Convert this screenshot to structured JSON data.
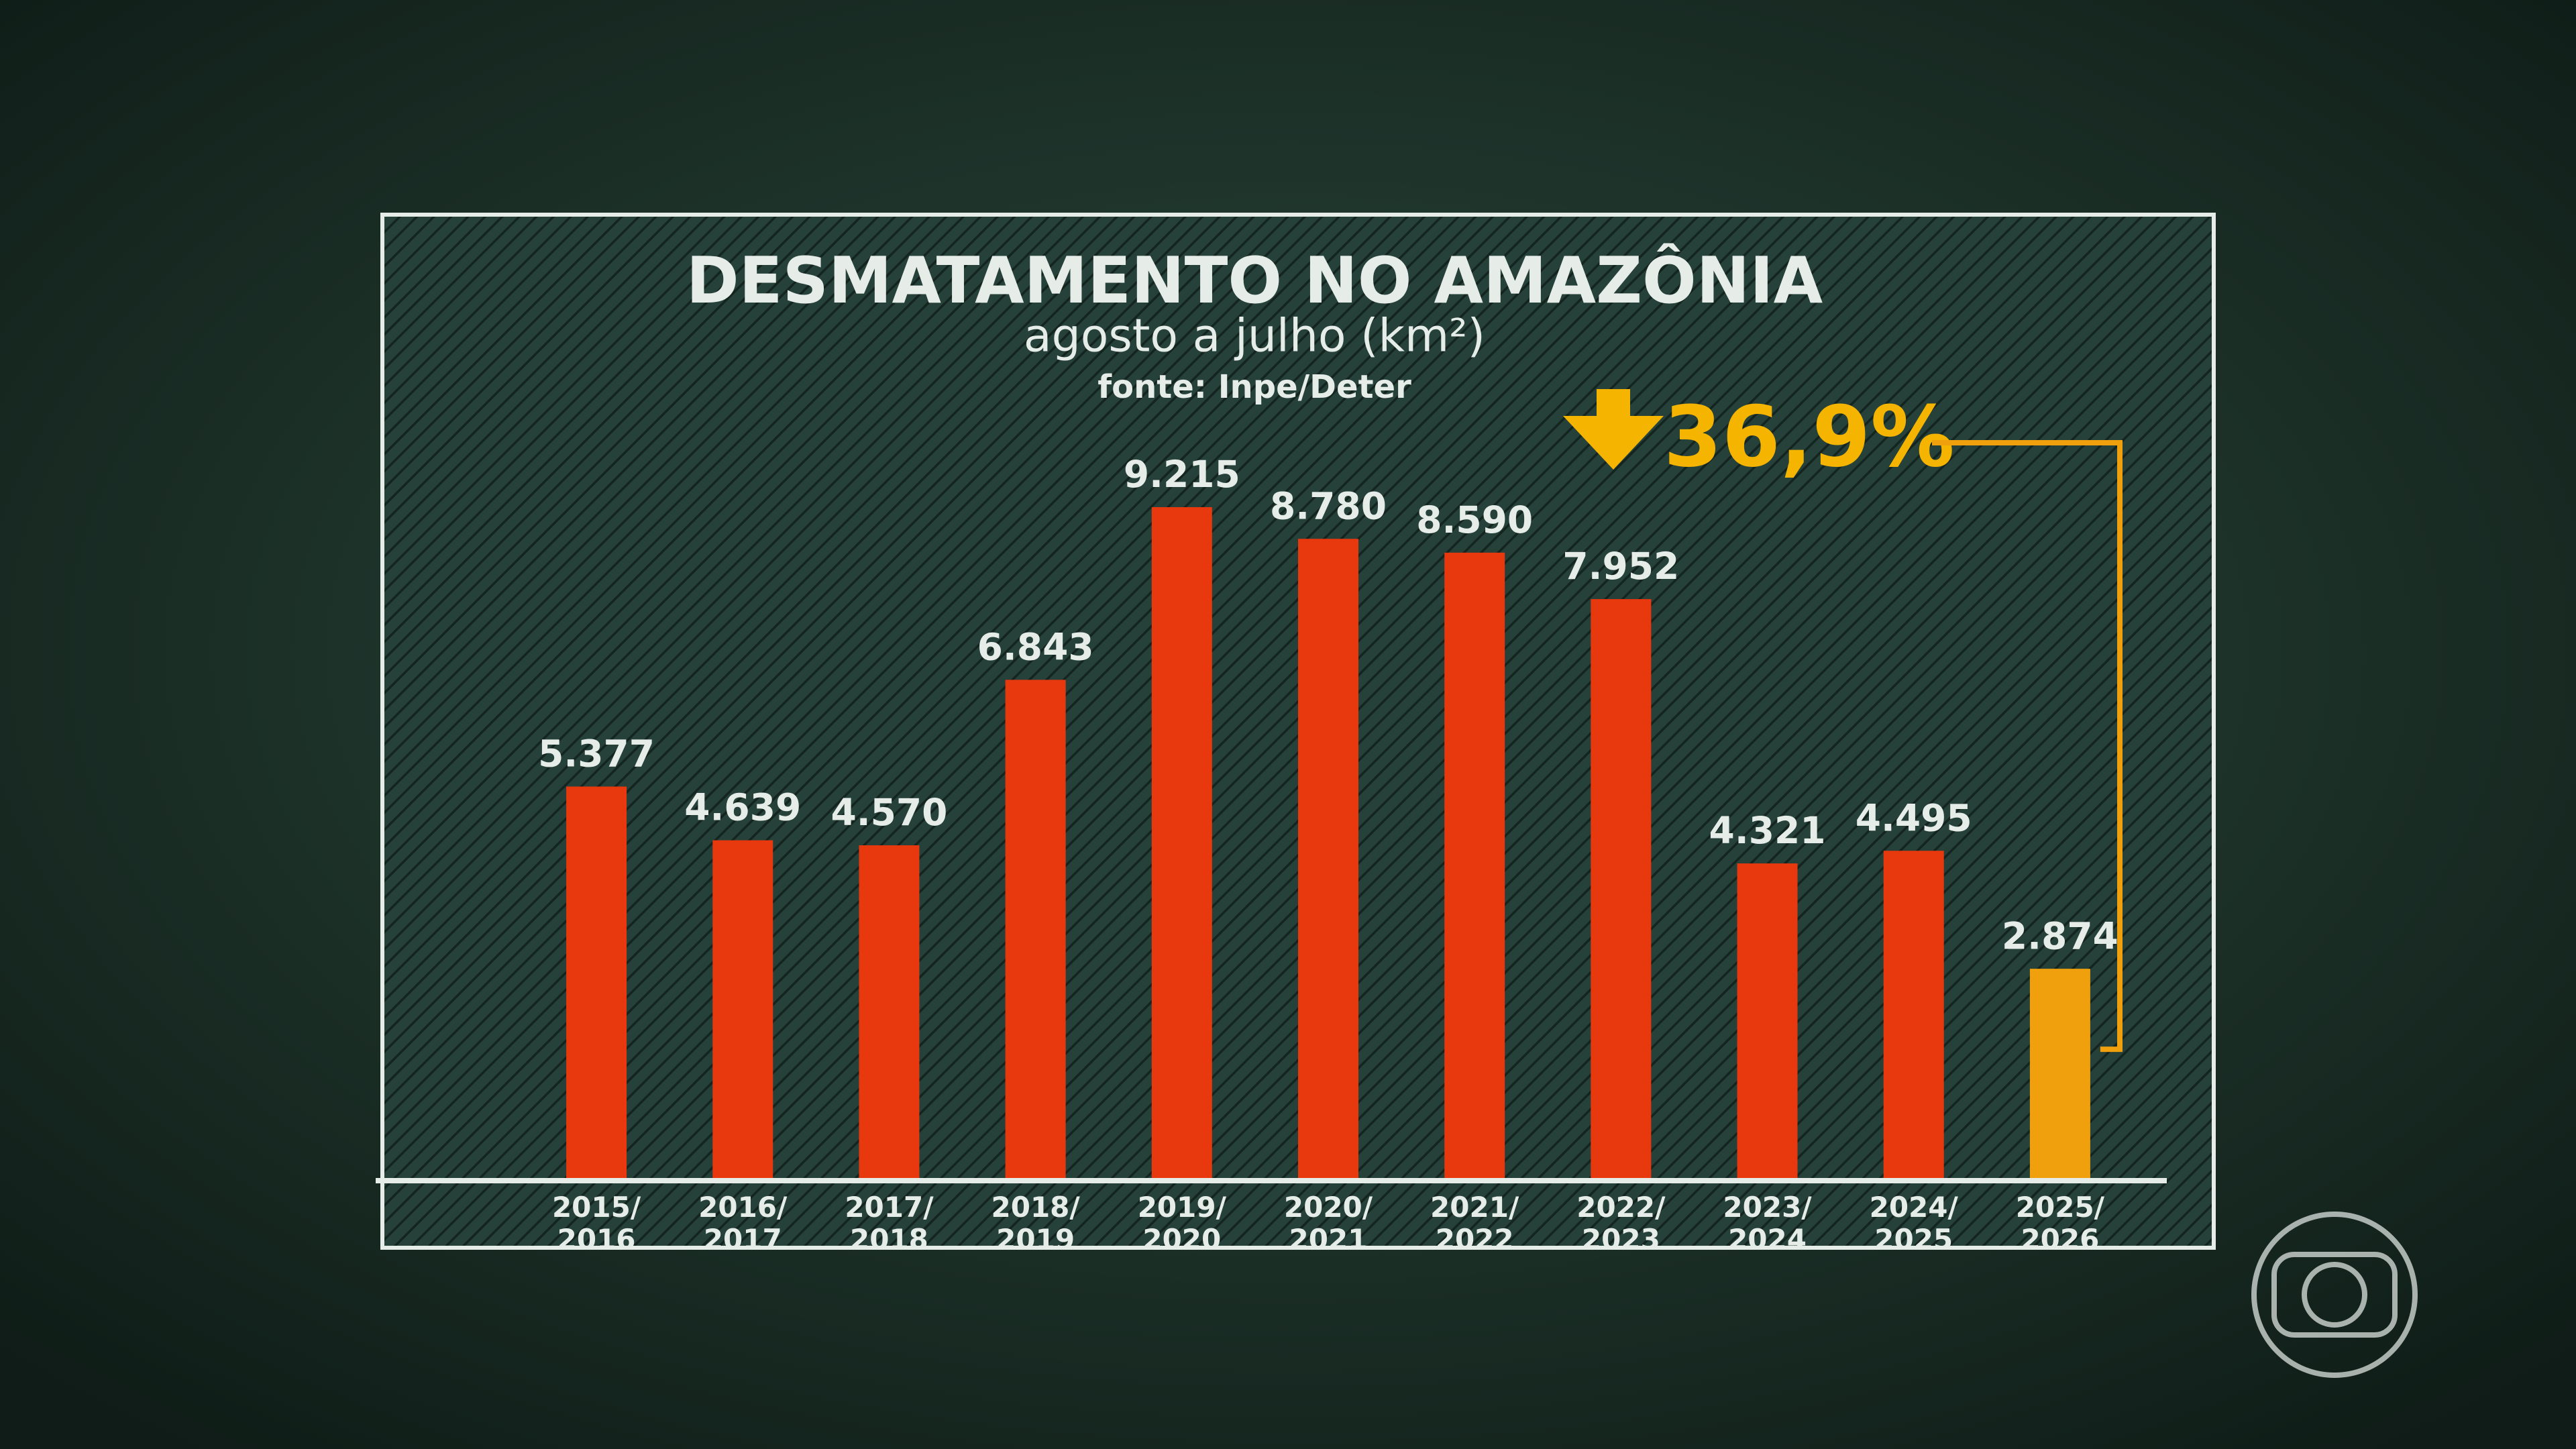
{
  "chart_data": {
    "type": "bar",
    "title": "DESMATAMENTO NO AMAZÔNIA",
    "subtitle": "agosto a julho (km²)",
    "source": "fonte: Inpe/Deter",
    "annotation": "36,9%",
    "categories": [
      "2015/\n2016",
      "2016/\n2017",
      "2017/\n2018",
      "2018/\n2019",
      "2019/\n2020",
      "2020/\n2021",
      "2021/\n2022",
      "2022/\n2023",
      "2023/\n2024",
      "2024/\n2025",
      "2025/\n2026"
    ],
    "values": [
      5377,
      4639,
      4570,
      6843,
      9215,
      8780,
      8590,
      7952,
      4321,
      4495,
      2874
    ],
    "value_labels": [
      "5.377",
      "4.639",
      "4.570",
      "6.843",
      "9.215",
      "8.780",
      "8.590",
      "7.952",
      "4.321",
      "4.495",
      "2.874"
    ],
    "colors": [
      "#e8380d",
      "#e8380d",
      "#e8380d",
      "#e8380d",
      "#e8380d",
      "#e8380d",
      "#e8380d",
      "#e8380d",
      "#e8380d",
      "#e8380d",
      "#f0a00c"
    ]
  }
}
